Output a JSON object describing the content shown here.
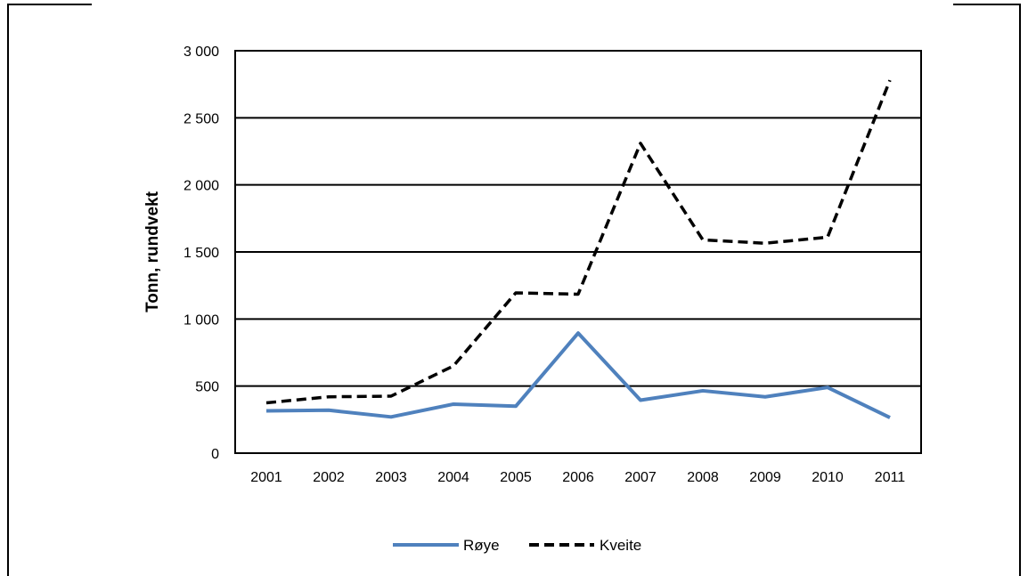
{
  "chart_data": {
    "type": "line",
    "title": "",
    "xlabel": "",
    "ylabel": "Tonn, rundvekt",
    "categories": [
      "2001",
      "2002",
      "2003",
      "2004",
      "2005",
      "2006",
      "2007",
      "2008",
      "2009",
      "2010",
      "2011"
    ],
    "ylim": [
      0,
      3000
    ],
    "yticks": [
      0,
      500,
      1000,
      1500,
      2000,
      2500,
      3000
    ],
    "ytick_labels": [
      "0",
      "500",
      "1 000",
      "1 500",
      "2 000",
      "2 500",
      "3 000"
    ],
    "grid": true,
    "legend_position": "bottom",
    "series": [
      {
        "name": "Røye",
        "color": "#4f81bd",
        "style": "solid",
        "values": [
          315,
          320,
          270,
          365,
          350,
          895,
          395,
          465,
          420,
          490,
          265
        ]
      },
      {
        "name": "Kveite",
        "color": "#000000",
        "style": "dashed",
        "values": [
          375,
          420,
          425,
          650,
          1195,
          1185,
          2310,
          1590,
          1565,
          1610,
          2780
        ]
      }
    ]
  }
}
